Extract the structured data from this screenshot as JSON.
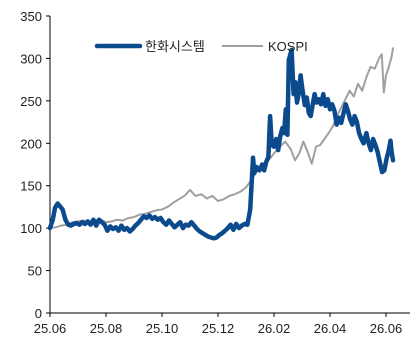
{
  "chart_data": {
    "type": "line",
    "title": "",
    "xlabel": "",
    "ylabel": "",
    "ylim": [
      0,
      350
    ],
    "yticks": [
      0,
      50,
      100,
      150,
      200,
      250,
      300,
      350
    ],
    "xtick_labels": [
      "25.06",
      "25.08",
      "25.10",
      "25.12",
      "26.02",
      "26.04",
      "26.06"
    ],
    "xtick_positions": [
      0,
      2,
      4,
      6,
      8,
      10,
      12
    ],
    "xlim": [
      0,
      12.5
    ],
    "grid": false,
    "legend_placement": "top",
    "series": [
      {
        "name": "한화시스템",
        "color": "#0b4a8c",
        "points": [
          [
            0.0,
            100
          ],
          [
            0.1,
            110
          ],
          [
            0.18,
            124
          ],
          [
            0.27,
            129
          ],
          [
            0.35,
            126
          ],
          [
            0.45,
            122
          ],
          [
            0.55,
            110
          ],
          [
            0.65,
            104
          ],
          [
            0.75,
            103
          ],
          [
            0.85,
            105
          ],
          [
            0.95,
            106
          ],
          [
            1.05,
            104
          ],
          [
            1.15,
            107
          ],
          [
            1.25,
            105
          ],
          [
            1.35,
            108
          ],
          [
            1.45,
            104
          ],
          [
            1.55,
            110
          ],
          [
            1.65,
            103
          ],
          [
            1.75,
            110
          ],
          [
            1.85,
            107
          ],
          [
            1.95,
            104
          ],
          [
            2.05,
            97
          ],
          [
            2.15,
            102
          ],
          [
            2.25,
            99
          ],
          [
            2.35,
            101
          ],
          [
            2.45,
            97
          ],
          [
            2.55,
            103
          ],
          [
            2.65,
            98
          ],
          [
            2.75,
            100
          ],
          [
            2.85,
            96
          ],
          [
            2.95,
            99
          ],
          [
            3.05,
            103
          ],
          [
            3.15,
            106
          ],
          [
            3.25,
            110
          ],
          [
            3.35,
            114
          ],
          [
            3.45,
            112
          ],
          [
            3.55,
            115
          ],
          [
            3.65,
            111
          ],
          [
            3.75,
            113
          ],
          [
            3.85,
            110
          ],
          [
            3.95,
            112
          ],
          [
            4.05,
            107
          ],
          [
            4.15,
            104
          ],
          [
            4.25,
            109
          ],
          [
            4.35,
            105
          ],
          [
            4.45,
            101
          ],
          [
            4.55,
            104
          ],
          [
            4.65,
            107
          ],
          [
            4.75,
            100
          ],
          [
            4.85,
            104
          ],
          [
            4.95,
            103
          ],
          [
            5.05,
            107
          ],
          [
            5.15,
            103
          ],
          [
            5.25,
            99
          ],
          [
            5.35,
            96
          ],
          [
            5.45,
            94
          ],
          [
            5.55,
            92
          ],
          [
            5.65,
            90
          ],
          [
            5.75,
            89
          ],
          [
            5.85,
            88
          ],
          [
            5.95,
            89
          ],
          [
            6.05,
            92
          ],
          [
            6.15,
            94
          ],
          [
            6.25,
            97
          ],
          [
            6.35,
            100
          ],
          [
            6.45,
            104
          ],
          [
            6.55,
            98
          ],
          [
            6.65,
            105
          ],
          [
            6.75,
            100
          ],
          [
            6.85,
            103
          ],
          [
            6.95,
            105
          ],
          [
            7.05,
            104
          ],
          [
            7.15,
            122
          ],
          [
            7.25,
            183
          ],
          [
            7.3,
            165
          ],
          [
            7.38,
            172
          ],
          [
            7.48,
            168
          ],
          [
            7.58,
            175
          ],
          [
            7.65,
            168
          ],
          [
            7.72,
            178
          ],
          [
            7.8,
            184
          ],
          [
            7.86,
            232
          ],
          [
            7.92,
            198
          ],
          [
            8.0,
            196
          ],
          [
            8.08,
            205
          ],
          [
            8.15,
            192
          ],
          [
            8.22,
            208
          ],
          [
            8.3,
            218
          ],
          [
            8.36,
            212
          ],
          [
            8.42,
            240
          ],
          [
            8.48,
            210
          ],
          [
            8.53,
            298
          ],
          [
            8.58,
            304
          ],
          [
            8.63,
            310
          ],
          [
            8.7,
            258
          ],
          [
            8.76,
            272
          ],
          [
            8.82,
            248
          ],
          [
            8.88,
            258
          ],
          [
            8.95,
            280
          ],
          [
            9.02,
            262
          ],
          [
            9.1,
            245
          ],
          [
            9.17,
            254
          ],
          [
            9.24,
            236
          ],
          [
            9.31,
            232
          ],
          [
            9.38,
            245
          ],
          [
            9.45,
            258
          ],
          [
            9.52,
            248
          ],
          [
            9.6,
            252
          ],
          [
            9.68,
            246
          ],
          [
            9.76,
            258
          ],
          [
            9.84,
            244
          ],
          [
            9.92,
            252
          ],
          [
            10.0,
            240
          ],
          [
            10.08,
            246
          ],
          [
            10.16,
            238
          ],
          [
            10.24,
            222
          ],
          [
            10.32,
            230
          ],
          [
            10.4,
            224
          ],
          [
            10.48,
            235
          ],
          [
            10.56,
            246
          ],
          [
            10.64,
            238
          ],
          [
            10.72,
            228
          ],
          [
            10.8,
            222
          ],
          [
            10.88,
            232
          ],
          [
            10.96,
            225
          ],
          [
            11.04,
            212
          ],
          [
            11.12,
            205
          ],
          [
            11.2,
            200
          ],
          [
            11.3,
            212
          ],
          [
            11.38,
            200
          ],
          [
            11.46,
            192
          ],
          [
            11.54,
            205
          ],
          [
            11.62,
            198
          ],
          [
            11.7,
            190
          ],
          [
            11.78,
            178
          ],
          [
            11.86,
            166
          ],
          [
            11.94,
            168
          ],
          [
            12.02,
            182
          ],
          [
            12.1,
            192
          ],
          [
            12.16,
            203
          ],
          [
            12.2,
            190
          ],
          [
            12.25,
            180
          ]
        ]
      },
      {
        "name": "KOSPI",
        "color": "#a0a0a0",
        "points": [
          [
            0.0,
            100
          ],
          [
            0.2,
            101
          ],
          [
            0.4,
            103
          ],
          [
            0.6,
            104
          ],
          [
            0.8,
            107
          ],
          [
            1.0,
            108
          ],
          [
            1.2,
            109
          ],
          [
            1.4,
            107
          ],
          [
            1.6,
            109
          ],
          [
            1.8,
            110
          ],
          [
            2.0,
            107
          ],
          [
            2.2,
            108
          ],
          [
            2.4,
            110
          ],
          [
            2.6,
            109
          ],
          [
            2.8,
            112
          ],
          [
            3.0,
            113
          ],
          [
            3.2,
            116
          ],
          [
            3.4,
            117
          ],
          [
            3.6,
            119
          ],
          [
            3.8,
            121
          ],
          [
            4.0,
            122
          ],
          [
            4.2,
            125
          ],
          [
            4.4,
            130
          ],
          [
            4.6,
            134
          ],
          [
            4.8,
            138
          ],
          [
            5.0,
            145
          ],
          [
            5.2,
            138
          ],
          [
            5.4,
            140
          ],
          [
            5.6,
            135
          ],
          [
            5.8,
            138
          ],
          [
            6.0,
            132
          ],
          [
            6.2,
            134
          ],
          [
            6.4,
            138
          ],
          [
            6.6,
            140
          ],
          [
            6.8,
            143
          ],
          [
            7.0,
            148
          ],
          [
            7.2,
            157
          ],
          [
            7.4,
            168
          ],
          [
            7.6,
            175
          ],
          [
            7.8,
            180
          ],
          [
            8.0,
            188
          ],
          [
            8.2,
            196
          ],
          [
            8.4,
            202
          ],
          [
            8.6,
            193
          ],
          [
            8.75,
            180
          ],
          [
            8.9,
            188
          ],
          [
            9.05,
            202
          ],
          [
            9.2,
            190
          ],
          [
            9.35,
            176
          ],
          [
            9.5,
            196
          ],
          [
            9.65,
            198
          ],
          [
            9.8,
            205
          ],
          [
            9.95,
            212
          ],
          [
            10.1,
            220
          ],
          [
            10.25,
            232
          ],
          [
            10.4,
            242
          ],
          [
            10.55,
            252
          ],
          [
            10.7,
            262
          ],
          [
            10.85,
            255
          ],
          [
            11.0,
            270
          ],
          [
            11.15,
            262
          ],
          [
            11.3,
            278
          ],
          [
            11.45,
            290
          ],
          [
            11.6,
            288
          ],
          [
            11.75,
            300
          ],
          [
            11.85,
            305
          ],
          [
            11.92,
            260
          ],
          [
            12.0,
            280
          ],
          [
            12.1,
            290
          ],
          [
            12.2,
            302
          ],
          [
            12.25,
            312
          ]
        ]
      }
    ]
  }
}
